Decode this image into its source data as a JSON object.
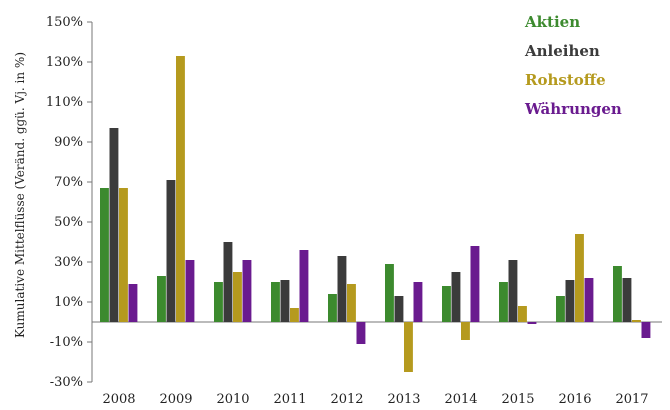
{
  "chart_data": {
    "type": "bar",
    "title": "",
    "xlabel": "",
    "ylabel": "Kumulative Mittelflüsse (Veränd. ggü. Vj. in %)",
    "ylim": [
      -30,
      150
    ],
    "yticks": [
      -30,
      -10,
      10,
      30,
      50,
      70,
      90,
      110,
      130,
      150
    ],
    "ytick_labels": [
      "-30%",
      "-10%",
      "10%",
      "30%",
      "50%",
      "70%",
      "90%",
      "110%",
      "130%",
      "150%"
    ],
    "grid": false,
    "legend_position": "top-right",
    "categories": [
      "2008",
      "2009",
      "2010",
      "2011",
      "2012",
      "2013",
      "2014",
      "2015",
      "2016",
      "2017"
    ],
    "series": [
      {
        "name": "Aktien",
        "color": "#3c8a2e",
        "values": [
          67,
          23,
          20,
          20,
          14,
          29,
          18,
          20,
          13,
          28
        ]
      },
      {
        "name": "Anleihen",
        "color": "#3b3b3b",
        "values": [
          97,
          71,
          40,
          21,
          33,
          13,
          25,
          31,
          21,
          22
        ]
      },
      {
        "name": "Rohstoffe",
        "color": "#b59a1e",
        "values": [
          67,
          133,
          25,
          7,
          19,
          -25,
          -9,
          8,
          44,
          1
        ]
      },
      {
        "name": "Währungen",
        "color": "#6a1b8f",
        "values": [
          19,
          31,
          31,
          36,
          -11,
          20,
          38,
          -1,
          22,
          -8
        ]
      }
    ]
  }
}
